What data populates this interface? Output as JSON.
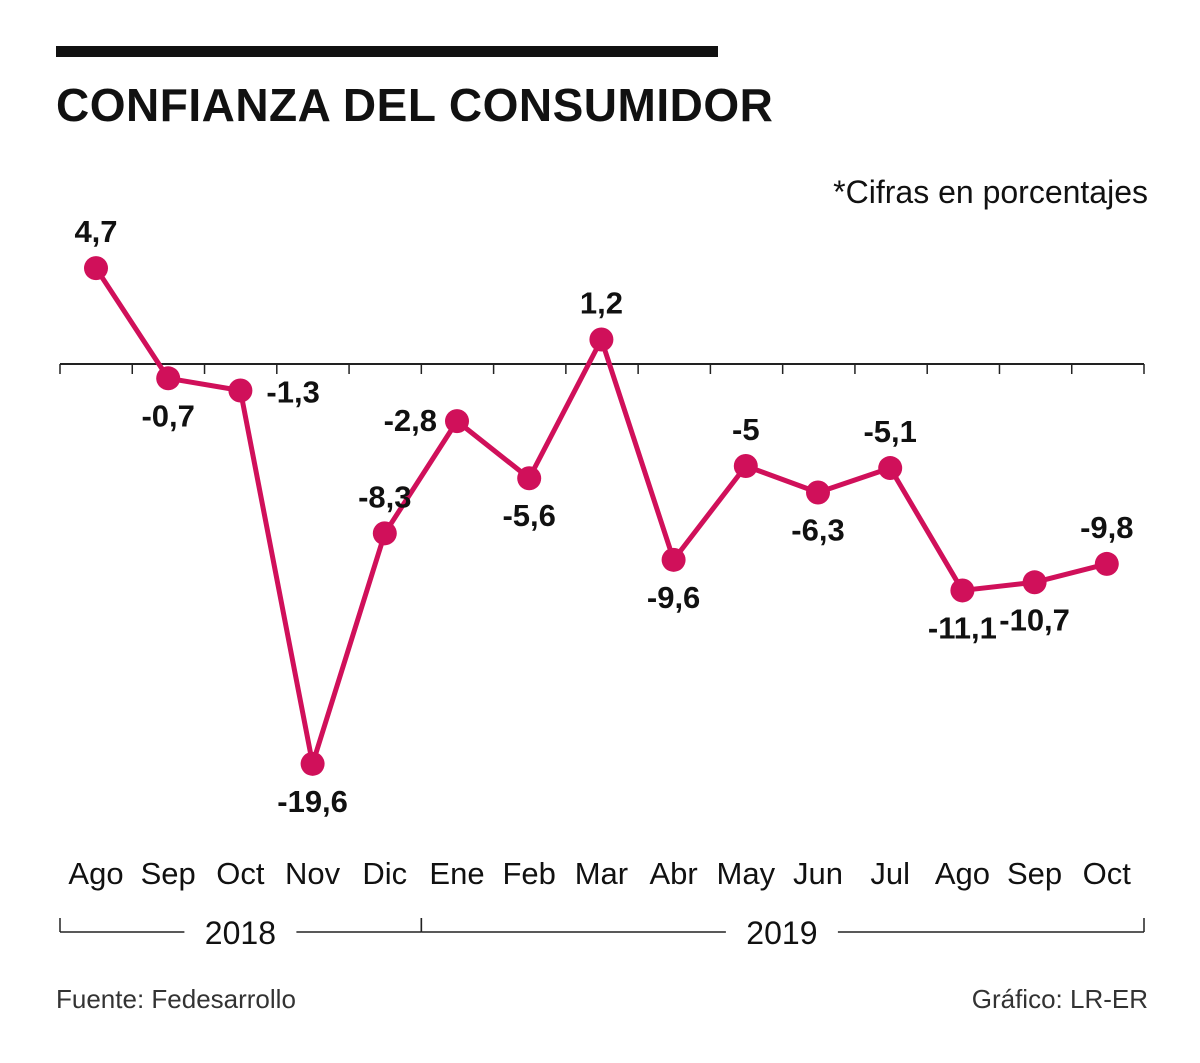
{
  "title": "CONFIANZA DEL CONSUMIDOR",
  "note": "*Cifras en porcentajes",
  "source": "Fuente: Fedesarrollo",
  "credit": "Gráfico: LR-ER",
  "colors": {
    "line": "#d0105a",
    "axis": "#222222",
    "text": "#111111"
  },
  "chart_data": {
    "type": "line",
    "title": "CONFIANZA DEL CONSUMIDOR",
    "xlabel": "",
    "ylabel": "*Cifras en porcentajes",
    "categories": [
      "Ago",
      "Sep",
      "Oct",
      "Nov",
      "Dic",
      "Ene",
      "Feb",
      "Mar",
      "Abr",
      "May",
      "Jun",
      "Jul",
      "Ago",
      "Sep",
      "Oct"
    ],
    "values": [
      4.7,
      -0.7,
      -1.3,
      -19.6,
      -8.3,
      -2.8,
      -5.6,
      1.2,
      -9.6,
      -5,
      -6.3,
      -5.1,
      -11.1,
      -10.7,
      -9.8
    ],
    "value_labels": [
      "4,7",
      "-0,7",
      "-1,3",
      "-19,6",
      "-8,3",
      "-2,8",
      "-5,6",
      "1,2",
      "-9,6",
      "-5",
      "-6,3",
      "-5,1",
      "-11,1",
      "-10,7",
      "-9,8"
    ],
    "label_positions": [
      "above",
      "below",
      "right",
      "below",
      "above",
      "left",
      "below",
      "above",
      "below",
      "above",
      "below",
      "above",
      "below",
      "below",
      "above"
    ],
    "years": [
      {
        "label": "2018",
        "first": 0,
        "last": 4
      },
      {
        "label": "2019",
        "first": 5,
        "last": 14
      }
    ],
    "ylim": [
      -20,
      5
    ],
    "grid": false,
    "legend": "none"
  }
}
